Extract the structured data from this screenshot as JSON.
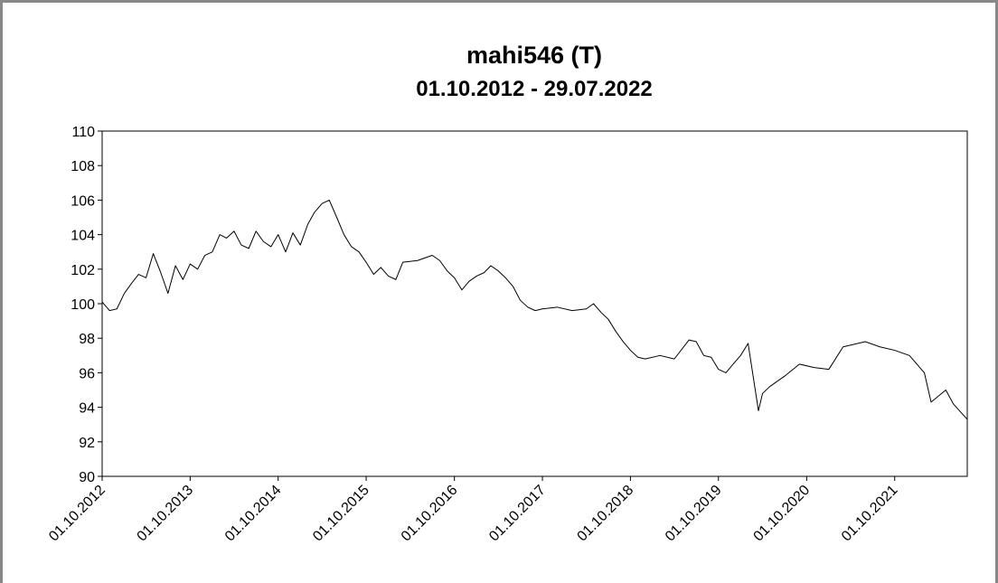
{
  "chart_data": {
    "type": "line",
    "title": "mahi546 (T)",
    "subtitle": "01.10.2012 - 29.07.2022",
    "x": [
      "01.10.2012",
      "01.11.2012",
      "01.12.2012",
      "01.01.2013",
      "01.02.2013",
      "01.03.2013",
      "01.04.2013",
      "01.05.2013",
      "01.06.2013",
      "01.07.2013",
      "01.08.2013",
      "01.09.2013",
      "01.10.2013",
      "01.11.2013",
      "01.12.2013",
      "01.01.2014",
      "01.02.2014",
      "01.03.2014",
      "01.04.2014",
      "01.05.2014",
      "01.06.2014",
      "01.07.2014",
      "01.08.2014",
      "01.09.2014",
      "01.10.2014",
      "01.11.2014",
      "01.12.2014",
      "01.01.2015",
      "01.02.2015",
      "01.03.2015",
      "01.04.2015",
      "01.05.2015",
      "01.06.2015",
      "01.07.2015",
      "01.08.2015",
      "01.09.2015",
      "01.10.2015",
      "01.11.2015",
      "01.12.2015",
      "01.01.2016",
      "01.02.2016",
      "01.03.2016",
      "01.05.2016",
      "01.07.2016",
      "01.08.2016",
      "01.09.2016",
      "01.10.2016",
      "01.11.2016",
      "01.12.2016",
      "01.01.2017",
      "01.02.2017",
      "01.03.2017",
      "01.04.2017",
      "01.05.2017",
      "01.06.2017",
      "01.07.2017",
      "01.08.2017",
      "01.09.2017",
      "01.10.2017",
      "01.12.2017",
      "01.02.2018",
      "01.04.2018",
      "01.05.2018",
      "01.06.2018",
      "01.07.2018",
      "01.08.2018",
      "01.09.2018",
      "01.10.2018",
      "01.11.2018",
      "01.12.2018",
      "01.02.2019",
      "01.04.2019",
      "01.06.2019",
      "01.07.2019",
      "01.08.2019",
      "01.09.2019",
      "01.10.2019",
      "01.11.2019",
      "01.12.2019",
      "01.01.2020",
      "01.02.2020",
      "15.03.2020",
      "01.04.2020",
      "01.05.2020",
      "01.07.2020",
      "01.09.2020",
      "01.11.2020",
      "01.01.2021",
      "01.03.2021",
      "01.06.2021",
      "01.08.2021",
      "01.10.2021",
      "01.12.2021",
      "01.02.2022",
      "01.03.2022",
      "01.05.2022",
      "01.06.2022",
      "29.07.2022"
    ],
    "values": [
      100.1,
      99.6,
      99.7,
      100.6,
      101.2,
      101.7,
      101.5,
      102.9,
      101.8,
      100.6,
      102.2,
      101.4,
      102.3,
      102.0,
      102.8,
      103.0,
      104.0,
      103.8,
      104.2,
      103.4,
      103.2,
      104.2,
      103.6,
      103.3,
      104.0,
      103.0,
      104.1,
      103.4,
      104.6,
      105.3,
      105.8,
      106.0,
      105.0,
      104.0,
      103.3,
      103.0,
      102.4,
      101.7,
      102.1,
      101.6,
      101.4,
      102.4,
      102.5,
      102.8,
      102.5,
      101.9,
      101.5,
      100.8,
      101.3,
      101.6,
      101.8,
      102.2,
      101.9,
      101.5,
      101.0,
      100.2,
      99.8,
      99.6,
      99.7,
      99.8,
      99.6,
      99.7,
      100.0,
      99.5,
      99.1,
      98.4,
      97.8,
      97.3,
      96.9,
      96.8,
      97.0,
      96.8,
      97.9,
      97.8,
      97.0,
      96.9,
      96.2,
      96.0,
      96.5,
      97.0,
      97.7,
      93.8,
      94.8,
      95.2,
      95.8,
      96.5,
      96.3,
      96.2,
      97.5,
      97.8,
      97.5,
      97.3,
      97.0,
      96.0,
      94.3,
      95.0,
      94.2,
      93.3
    ],
    "color": "#000000",
    "xlim": [
      "01.10.2012",
      "29.07.2022"
    ],
    "xticks": [
      "01.10.2012",
      "01.10.2013",
      "01.10.2014",
      "01.10.2015",
      "01.10.2016",
      "01.10.2017",
      "01.10.2018",
      "01.10.2019",
      "01.10.2020",
      "01.10.2021"
    ],
    "ylim": [
      90,
      110
    ],
    "yticks": [
      90,
      92,
      94,
      96,
      98,
      100,
      102,
      104,
      106,
      108,
      110
    ],
    "grid": false
  }
}
